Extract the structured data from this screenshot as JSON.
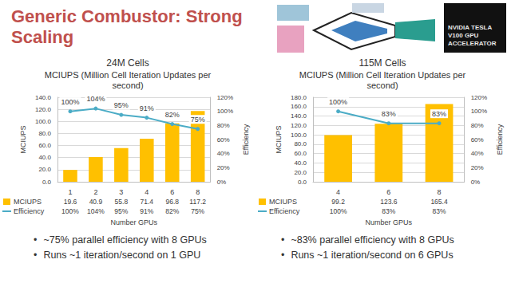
{
  "title": "Generic Combustor: Strong Scaling",
  "badge": "NVIDIA TESLA V100 GPU ACCELERATOR",
  "chart_data": [
    {
      "type": "bar",
      "title": "24M Cells",
      "subtitle": "MCIUPS (Million Cell Iteration Updates per second)",
      "x_label": "Number GPUs",
      "y_label": "MCIUPS",
      "y2_label": "Efficiency",
      "categories": [
        "1",
        "2",
        "3",
        "4",
        "6",
        "8"
      ],
      "series": [
        {
          "name": "MCIUPS",
          "type": "bar",
          "color": "#ffc000",
          "values": [
            19.6,
            40.9,
            55.8,
            71.4,
            96.8,
            117.2
          ]
        },
        {
          "name": "Efficiency",
          "type": "line",
          "color": "#4bacc6",
          "axis": "y2",
          "marker": "circle",
          "data_labels": true,
          "values": [
            100,
            104,
            95,
            91,
            82,
            75
          ],
          "value_labels": [
            "100%",
            "104%",
            "95%",
            "91%",
            "82%",
            "75%"
          ]
        }
      ],
      "ylim": [
        0,
        140
      ],
      "yticks": [
        {
          "value": 0,
          "label": "0.0"
        },
        {
          "value": 20,
          "label": "20.0"
        },
        {
          "value": 40,
          "label": "40.0"
        },
        {
          "value": 60,
          "label": "60.0"
        },
        {
          "value": 80,
          "label": "80.0"
        },
        {
          "value": 100,
          "label": "100.0"
        },
        {
          "value": 120,
          "label": "120.0"
        },
        {
          "value": 140,
          "label": "140.0"
        }
      ],
      "y2lim": [
        0,
        120
      ],
      "y2ticks": [
        {
          "value": 0,
          "label": "0%"
        },
        {
          "value": 20,
          "label": "20%"
        },
        {
          "value": 40,
          "label": "40%"
        },
        {
          "value": 60,
          "label": "60%"
        },
        {
          "value": 80,
          "label": "80%"
        },
        {
          "value": 100,
          "label": "100%"
        },
        {
          "value": 120,
          "label": "120%"
        }
      ],
      "grid": true,
      "legend": "bottom",
      "annotations": [
        "~75% parallel efficiency with 8 GPUs",
        "Runs ~1 iteration/second on 1 GPU"
      ]
    },
    {
      "type": "bar",
      "title": "115M Cells",
      "subtitle": "MCIUPS (Million Cell Iteration Updates per second)",
      "x_label": "Number GPUs",
      "y_label": "MCIUPS",
      "y2_label": "Efficiency",
      "categories": [
        "4",
        "6",
        "8"
      ],
      "series": [
        {
          "name": "MCIUPS",
          "type": "bar",
          "color": "#ffc000",
          "values": [
            99.2,
            123.6,
            165.4
          ]
        },
        {
          "name": "Efficiency",
          "type": "line",
          "color": "#4bacc6",
          "axis": "y2",
          "marker": "circle",
          "data_labels": true,
          "values": [
            100,
            83,
            83
          ],
          "value_labels": [
            "100%",
            "83%",
            "83%"
          ]
        }
      ],
      "ylim": [
        0,
        180
      ],
      "yticks": [
        {
          "value": 0,
          "label": "0.0"
        },
        {
          "value": 20,
          "label": "20.0"
        },
        {
          "value": 40,
          "label": "40.0"
        },
        {
          "value": 60,
          "label": "60.0"
        },
        {
          "value": 80,
          "label": "80.0"
        },
        {
          "value": 100,
          "label": "100.0"
        },
        {
          "value": 120,
          "label": "120.0"
        },
        {
          "value": 140,
          "label": "140.0"
        },
        {
          "value": 160,
          "label": "160.0"
        },
        {
          "value": 180,
          "label": "180.0"
        }
      ],
      "y2lim": [
        0,
        120
      ],
      "y2ticks": [
        {
          "value": 0,
          "label": "0%"
        },
        {
          "value": 20,
          "label": "20%"
        },
        {
          "value": 40,
          "label": "40%"
        },
        {
          "value": 60,
          "label": "60%"
        },
        {
          "value": 80,
          "label": "80%"
        },
        {
          "value": 100,
          "label": "100%"
        },
        {
          "value": 120,
          "label": "120%"
        }
      ],
      "grid": true,
      "legend": "bottom",
      "annotations": [
        "~83% parallel efficiency with 8 GPUs",
        "Runs ~1 iteration/second on 6 GPUs"
      ]
    }
  ]
}
